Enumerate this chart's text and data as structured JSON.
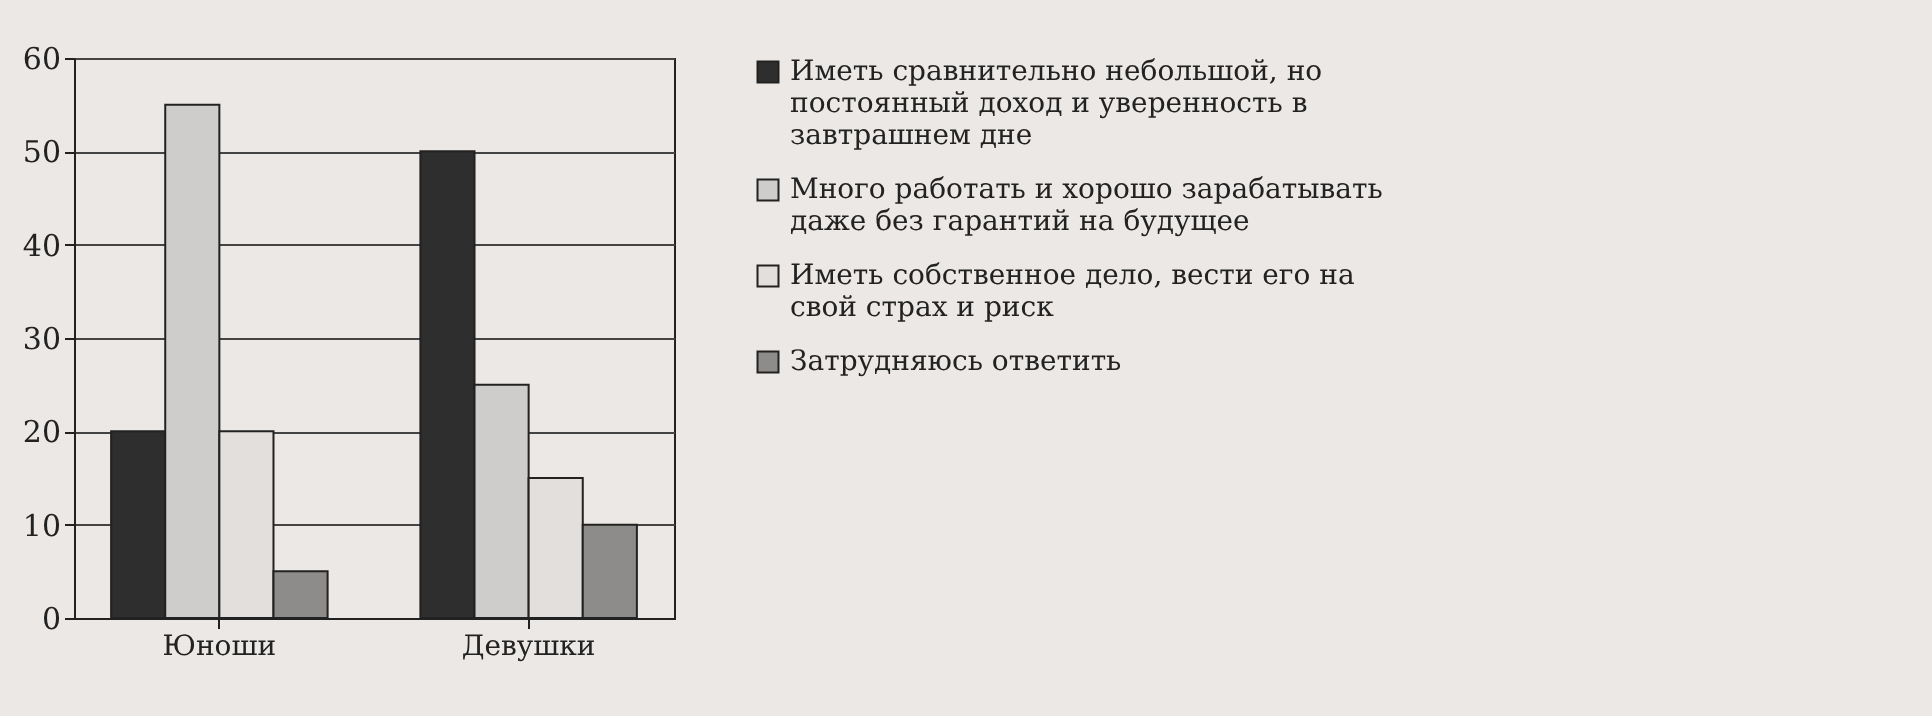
{
  "chart_data": {
    "type": "bar",
    "categories": [
      "Юноши",
      "Девушки"
    ],
    "series": [
      {
        "name": "Иметь сравнительно небольшой, но постоянный доход и уверенность в завтрашнем дне",
        "color": "#2e2e2e",
        "values": [
          20,
          50
        ]
      },
      {
        "name": "Много работать и хорошо зарабатывать даже без гарантий на будущее",
        "color": "#cfcccc",
        "values": [
          55,
          25
        ]
      },
      {
        "name": "Иметь собственное дело, вести его на свой страх и риск",
        "color": "#e2dfdc",
        "values": [
          20,
          15
        ]
      },
      {
        "name": "Затрудняюсь ответить",
        "color": "#8e8c8a",
        "values": [
          5,
          10
        ]
      }
    ],
    "ylim": [
      0,
      60
    ],
    "yticks": [
      0,
      10,
      20,
      30,
      40,
      50,
      60
    ],
    "grid": "y",
    "legend": "right"
  }
}
